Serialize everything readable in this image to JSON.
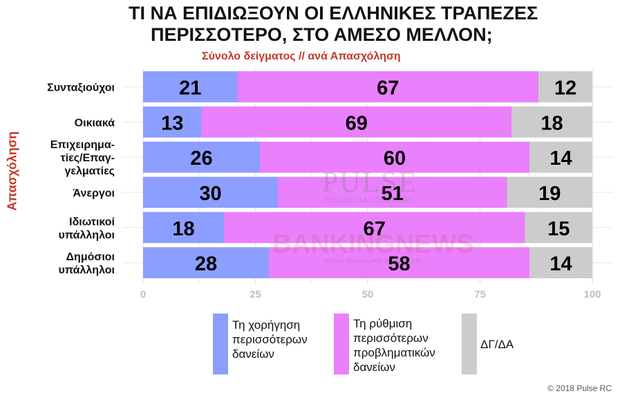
{
  "title": {
    "line1": "ΤΙ ΝΑ ΕΠΙΔΙΩΞΟΥΝ ΟΙ ΕΛΛΗΝΙΚΕΣ ΤΡΑΠΕΖΕΣ",
    "line2": "ΠΕΡΙΣΣΟΤΕΡΟ, ΣΤΟ ΑΜΕΣΟ ΜΕΛΛΟΝ;"
  },
  "subtitle": "Σύνολο δείγματος // ανά Απασχόληση",
  "chart_data": {
    "type": "bar",
    "orientation": "horizontal",
    "stacked": true,
    "ylabel": "Απασχόληση",
    "categories": [
      "Συνταξιούχοι",
      "Οικιακά",
      "Επιχειρηματίες/Επαγγελματίες",
      "Άνεργοι",
      "Ιδιωτικοί υπάλληλοι",
      "Δημόσιοι υπάλληλοι"
    ],
    "category_label_lines": [
      [
        "Συνταξιούχοι"
      ],
      [
        "Οικιακά"
      ],
      [
        "Επιχειρημα-",
        "τίες/Επαγ-",
        "γελματίες"
      ],
      [
        "Άνεργοι"
      ],
      [
        "Ιδιωτικοί",
        "υπάλληλοι"
      ],
      [
        "Δημόσιοι",
        "υπάλληλοι"
      ]
    ],
    "series": [
      {
        "name": "Τη χορήγηση περισσότερων δανείων",
        "values": [
          21,
          13,
          26,
          30,
          18,
          28
        ],
        "color": "#8c9eff"
      },
      {
        "name": "Τη ρύθμιση περισσότερων προβληματικών δανείων",
        "values": [
          67,
          69,
          60,
          51,
          67,
          58
        ],
        "color": "#ea80fc"
      },
      {
        "name": "ΔΓ/ΔΑ",
        "values": [
          12,
          18,
          14,
          19,
          15,
          14
        ],
        "color": "#cccccc"
      }
    ],
    "xlim": [
      0,
      100
    ],
    "x_ticks": [
      "0",
      "25",
      "50",
      "75",
      "100"
    ],
    "grid": true,
    "legend_position": "bottom"
  },
  "legend": [
    {
      "text": "Τη χορήγηση\nπερισσότερων\nδανείων"
    },
    {
      "text": "Τη ρύθμιση\nπερισσότερων\nπροβληματικών\nδανείων"
    },
    {
      "text": "ΔΓ/ΔΑ"
    }
  ],
  "watermarks": {
    "pulse": "PULSE",
    "pulse_sub": "RESEARCH & CONSULTING",
    "banking": "BANKINGNEWS",
    "banking_sub": "online οικονομική ενημέρωση"
  },
  "copyright": "© 2018 Pulse RC"
}
